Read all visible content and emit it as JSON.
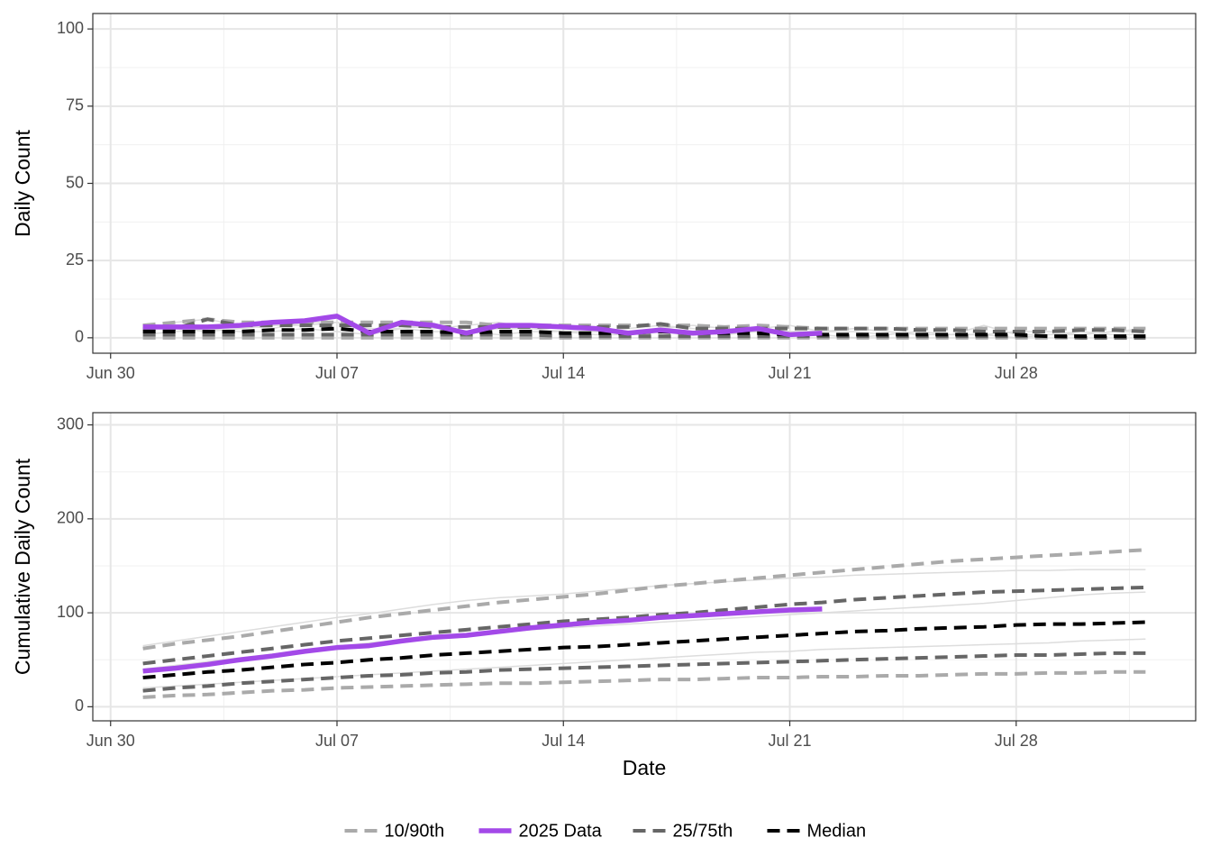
{
  "chart_data": [
    {
      "type": "line",
      "y_label": "Daily Count",
      "x": [
        "Jul 01",
        "Jul 02",
        "Jul 03",
        "Jul 04",
        "Jul 05",
        "Jul 06",
        "Jul 07",
        "Jul 08",
        "Jul 09",
        "Jul 10",
        "Jul 11",
        "Jul 12",
        "Jul 13",
        "Jul 14",
        "Jul 15",
        "Jul 16",
        "Jul 17",
        "Jul 18",
        "Jul 19",
        "Jul 20",
        "Jul 21",
        "Jul 22",
        "Jul 23",
        "Jul 24",
        "Jul 25",
        "Jul 26",
        "Jul 27",
        "Jul 28",
        "Jul 29",
        "Jul 30",
        "Jul 31",
        "Aug 01"
      ],
      "xlim": [
        "Jul 01",
        "Aug 01"
      ],
      "xticks": [
        "Jun 30",
        "Jul 07",
        "Jul 14",
        "Jul 21",
        "Jul 28"
      ],
      "ylim": [
        -5,
        105
      ],
      "yticks": [
        0,
        25,
        50,
        75,
        100
      ],
      "grid": true,
      "series": [
        {
          "color": "#dddddd",
          "values": [
            2,
            5,
            6,
            4,
            3,
            5,
            5,
            2,
            4,
            3,
            4,
            5,
            3,
            2,
            2,
            3,
            4,
            3,
            2,
            3,
            4,
            2,
            2,
            1,
            2,
            1,
            4,
            1,
            1,
            1,
            2,
            2
          ]
        },
        {
          "color": "#dddddd",
          "values": [
            1,
            2,
            3,
            2,
            2,
            3,
            2,
            1,
            3,
            2,
            2,
            1,
            2,
            2,
            1,
            1,
            2,
            2,
            1,
            2,
            1,
            1,
            0,
            1,
            2,
            1,
            1,
            0,
            1,
            2,
            1,
            1
          ]
        },
        {
          "color": "#dddddd",
          "values": [
            3,
            3,
            2,
            3,
            4,
            4,
            5,
            3,
            3,
            4,
            2,
            3,
            3,
            4,
            2,
            2,
            3,
            4,
            3,
            2,
            2,
            2,
            3,
            2,
            1,
            1,
            1,
            2,
            2,
            1,
            2,
            3
          ]
        },
        {
          "color": "#aaaaaa",
          "dashed": true,
          "values": [
            0,
            0,
            0,
            0,
            0,
            0,
            0,
            0,
            0,
            0,
            0,
            0,
            0,
            0,
            0,
            0,
            0,
            0,
            0,
            0,
            0,
            0,
            0,
            0,
            0,
            0,
            0,
            0,
            0,
            0,
            0,
            0
          ],
          "upper_values": [
            4,
            5,
            6,
            5,
            5,
            5,
            5,
            5,
            5,
            5,
            5,
            4,
            4,
            4,
            4,
            4,
            4,
            4,
            3.5,
            4,
            3.5,
            3,
            3,
            3,
            3,
            3,
            3,
            3,
            3,
            3,
            3,
            3
          ]
        },
        {
          "color": "#a349e8",
          "dashed": false,
          "values": [
            3.5,
            3.5,
            3.5,
            4,
            5,
            5.5,
            7,
            1.5,
            5,
            4,
            1.5,
            4,
            4,
            3.5,
            3,
            1.5,
            2.5,
            1.5,
            2,
            3,
            1,
            1.5,
            null,
            null,
            null,
            null,
            null,
            null,
            null,
            null,
            null,
            null
          ]
        },
        {
          "color": "#666666",
          "dashed": true,
          "values": [
            1,
            1,
            1,
            1,
            1,
            1,
            1,
            1,
            1,
            1,
            1,
            1,
            1,
            0.5,
            0.5,
            0.5,
            0.5,
            0.5,
            0.5,
            0.5,
            0.5,
            0.5,
            0.5,
            0.5,
            0.5,
            0.5,
            0.5,
            0.5,
            0.5,
            0,
            0,
            0
          ],
          "upper_values": [
            3,
            3,
            6,
            4,
            4,
            4,
            4,
            4,
            4,
            3.5,
            3.5,
            3.5,
            3.5,
            3.5,
            3.5,
            3.5,
            4.5,
            3,
            3,
            3,
            3,
            3,
            3,
            3,
            2.5,
            2.5,
            2,
            2,
            2,
            2.5,
            2.5,
            2
          ]
        },
        {
          "color": "#000000",
          "dashed": true,
          "values": [
            2,
            2,
            2,
            2,
            2.5,
            2.5,
            3,
            2,
            2,
            2,
            1.5,
            2,
            2,
            1.5,
            1.5,
            1.5,
            2,
            1.5,
            1.5,
            1.5,
            1,
            1,
            1,
            1,
            1,
            1,
            1,
            1,
            0.5,
            0.5,
            0.5,
            0.5
          ]
        }
      ]
    },
    {
      "type": "line",
      "y_label": "Cumulative Daily Count",
      "x_label": "Date",
      "legend": "bottom",
      "x": [
        "Jul 01",
        "Jul 02",
        "Jul 03",
        "Jul 04",
        "Jul 05",
        "Jul 06",
        "Jul 07",
        "Jul 08",
        "Jul 09",
        "Jul 10",
        "Jul 11",
        "Jul 12",
        "Jul 13",
        "Jul 14",
        "Jul 15",
        "Jul 16",
        "Jul 17",
        "Jul 18",
        "Jul 19",
        "Jul 20",
        "Jul 21",
        "Jul 22",
        "Jul 23",
        "Jul 24",
        "Jul 25",
        "Jul 26",
        "Jul 27",
        "Jul 28",
        "Jul 29",
        "Jul 30",
        "Jul 31",
        "Aug 01"
      ],
      "xlim": [
        "Jul 01",
        "Aug 01"
      ],
      "xticks": [
        "Jun 30",
        "Jul 07",
        "Jul 14",
        "Jul 21",
        "Jul 28"
      ],
      "ylim": [
        -15,
        313
      ],
      "yticks": [
        0,
        100,
        200,
        300
      ],
      "grid": true,
      "series": [
        {
          "color": "#dddddd",
          "values": [
            65,
            70,
            75,
            80,
            85,
            90,
            95,
            99,
            104,
            109,
            113,
            116,
            118,
            120,
            123,
            126,
            129,
            131,
            133,
            135,
            137,
            138,
            140,
            141,
            142,
            143,
            144,
            145,
            145,
            146,
            146,
            146
          ]
        },
        {
          "color": "#dddddd",
          "values": [
            20,
            22,
            24,
            26,
            28,
            30,
            32,
            34,
            36,
            38,
            40,
            42,
            44,
            46,
            48,
            50,
            52,
            54,
            56,
            58,
            59,
            61,
            62,
            63,
            64,
            65,
            66,
            67,
            68,
            70,
            71,
            72
          ]
        },
        {
          "color": "#dddddd",
          "values": [
            40,
            44,
            48,
            52,
            56,
            60,
            64,
            68,
            71,
            74,
            76,
            79,
            82,
            84,
            86,
            88,
            90,
            92,
            94,
            96,
            98,
            100,
            102,
            104,
            106,
            108,
            110,
            113,
            116,
            119,
            121,
            122
          ]
        },
        {
          "name": "10/90th",
          "color": "#aaaaaa",
          "dashed": true,
          "values": [
            10,
            12,
            13,
            15,
            17,
            18,
            20,
            21,
            22,
            23,
            24,
            25,
            25,
            26,
            27,
            28,
            29,
            29,
            30,
            31,
            31,
            32,
            32,
            33,
            33,
            34,
            35,
            35,
            36,
            36,
            37,
            37
          ],
          "upper_values": [
            62,
            67,
            71,
            75,
            80,
            85,
            90,
            95,
            99,
            103,
            107,
            111,
            114,
            117,
            120,
            124,
            128,
            131,
            134,
            137,
            140,
            143,
            146,
            149,
            152,
            155,
            157,
            159,
            161,
            163,
            165,
            167
          ]
        },
        {
          "name": "2025 Data",
          "color": "#a349e8",
          "dashed": false,
          "values": [
            38,
            41,
            45,
            50,
            54,
            59,
            63,
            65,
            70,
            74,
            76,
            80,
            84,
            87,
            90,
            92,
            95,
            97,
            99,
            101,
            103,
            104,
            null,
            null,
            null,
            null,
            null,
            null,
            null,
            null,
            null,
            null
          ]
        },
        {
          "name": "25/75th",
          "color": "#666666",
          "dashed": true,
          "values": [
            17,
            20,
            22,
            25,
            27,
            29,
            31,
            33,
            34,
            36,
            37,
            39,
            40,
            41,
            42,
            43,
            44,
            45,
            46,
            47,
            48,
            49,
            50,
            51,
            52,
            53,
            54,
            55,
            55,
            56,
            57,
            57
          ],
          "upper_values": [
            46,
            50,
            54,
            58,
            62,
            66,
            70,
            73,
            76,
            79,
            82,
            85,
            88,
            91,
            93,
            95,
            98,
            100,
            103,
            106,
            109,
            111,
            114,
            116,
            118,
            120,
            122,
            123,
            124,
            125,
            126,
            127
          ]
        },
        {
          "name": "Median",
          "color": "#000000",
          "dashed": true,
          "values": [
            31,
            34,
            37,
            39,
            42,
            45,
            47,
            50,
            52,
            55,
            57,
            59,
            61,
            63,
            64,
            66,
            68,
            70,
            72,
            74,
            76,
            78,
            80,
            81,
            83,
            84,
            85,
            87,
            88,
            88,
            89,
            90
          ]
        }
      ]
    }
  ]
}
